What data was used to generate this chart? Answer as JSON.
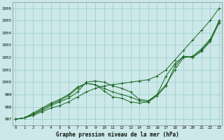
{
  "xlabel": "Graphe pression niveau de la mer (hPa)",
  "background_color": "#cce8e8",
  "grid_color": "#99cccc",
  "line_color": "#1a6620",
  "ylim": [
    996.5,
    1006.5
  ],
  "xlim": [
    -0.3,
    23.3
  ],
  "yticks": [
    997,
    998,
    999,
    1000,
    1001,
    1002,
    1003,
    1004,
    1005,
    1006
  ],
  "xticks": [
    0,
    1,
    2,
    3,
    4,
    5,
    6,
    7,
    8,
    9,
    10,
    11,
    12,
    13,
    14,
    15,
    16,
    17,
    18,
    19,
    20,
    21,
    22,
    23
  ],
  "series": [
    [
      997.0,
      997.1,
      997.3,
      997.6,
      997.9,
      998.1,
      998.4,
      998.8,
      999.2,
      999.5,
      999.7,
      999.8,
      999.9,
      1000.0,
      1000.1,
      1000.2,
      1000.5,
      1001.0,
      1001.8,
      1002.6,
      1003.4,
      1004.2,
      1005.0,
      1006.0
    ],
    [
      997.0,
      997.1,
      997.4,
      997.7,
      998.1,
      998.4,
      998.7,
      999.2,
      1000.0,
      1000.1,
      1000.0,
      999.7,
      999.5,
      999.2,
      998.6,
      998.5,
      999.0,
      999.8,
      1001.0,
      1002.0,
      1002.1,
      1002.7,
      1003.5,
      1004.9
    ],
    [
      997.0,
      997.1,
      997.4,
      997.8,
      998.2,
      998.5,
      998.9,
      999.5,
      999.9,
      999.8,
      999.5,
      999.2,
      999.0,
      998.8,
      998.5,
      998.4,
      998.9,
      999.7,
      1001.3,
      1002.1,
      1002.0,
      1002.6,
      1003.4,
      1005.0
    ],
    [
      997.0,
      997.1,
      997.5,
      997.9,
      998.3,
      998.6,
      999.0,
      999.6,
      999.9,
      999.8,
      999.3,
      998.8,
      998.7,
      998.4,
      998.3,
      998.4,
      999.0,
      1000.5,
      1001.5,
      1002.1,
      1002.0,
      1002.5,
      1003.3,
      1004.8
    ]
  ]
}
